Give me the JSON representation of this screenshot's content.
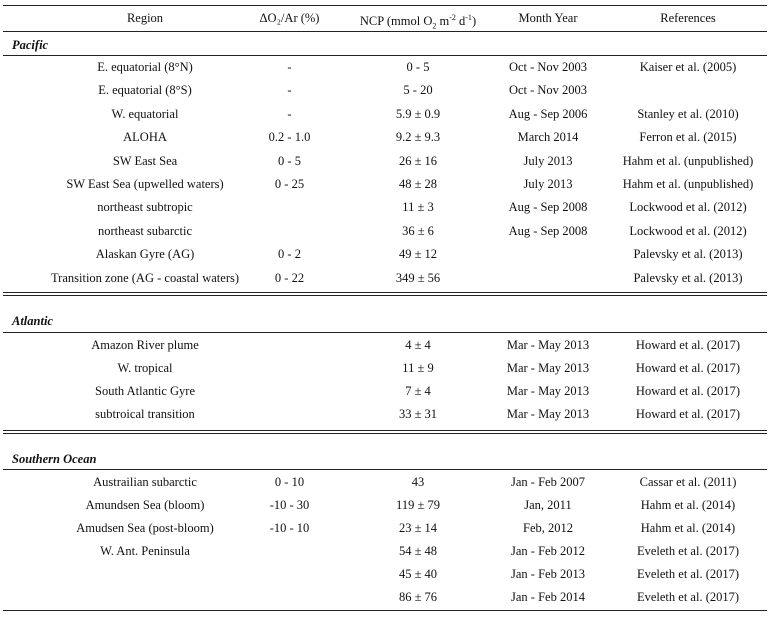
{
  "headers": {
    "region": "Region",
    "do2ar": "ΔO₂/Ar (%)",
    "ncp_prefix": "NCP (mmol O",
    "ncp_suffix": ")",
    "month_year": "Month Year",
    "references": "References"
  },
  "sections": [
    {
      "name": "Pacific",
      "rows": [
        {
          "region": "E. equatorial (8°N)",
          "do2ar": "-",
          "ncp": "0 - 5",
          "date": "Oct - Nov 2003",
          "ref": "Kaiser et al. (2005)"
        },
        {
          "region": "E. equatorial (8°S)",
          "do2ar": "-",
          "ncp": "5 - 20",
          "date": "Oct - Nov 2003",
          "ref": ""
        },
        {
          "region": "W. equatorial",
          "do2ar": "-",
          "ncp": "5.9 ± 0.9",
          "date": "Aug - Sep 2006",
          "ref": "Stanley et al. (2010)"
        },
        {
          "region": "ALOHA",
          "do2ar": "0.2 - 1.0",
          "ncp": "9.2 ± 9.3",
          "date": "March 2014",
          "ref": "Ferron et al. (2015)"
        },
        {
          "region": "SW East Sea",
          "do2ar": "0 - 5",
          "ncp": "26 ± 16",
          "date": "July 2013",
          "ref": "Hahm et al. (unpublished)"
        },
        {
          "region": "SW East Sea (upwelled waters)",
          "do2ar": "0 - 25",
          "ncp": "48 ± 28",
          "date": "July 2013",
          "ref": "Hahm et al. (unpublished)"
        },
        {
          "region": "northeast subtropic",
          "do2ar": "",
          "ncp": "11 ± 3",
          "date": "Aug - Sep 2008",
          "ref": "Lockwood et al. (2012)"
        },
        {
          "region": "northeast subarctic",
          "do2ar": "",
          "ncp": "36 ± 6",
          "date": "Aug - Sep 2008",
          "ref": "Lockwood et al. (2012)"
        },
        {
          "region": "Alaskan Gyre (AG)",
          "do2ar": "0 - 2",
          "ncp": "49 ± 12",
          "date": "",
          "ref": "Palevsky et al. (2013)"
        },
        {
          "region": "Transition zone (AG - coastal waters)",
          "do2ar": "0 - 22",
          "ncp": "349 ± 56",
          "date": "",
          "ref": "Palevsky et al. (2013)"
        }
      ]
    },
    {
      "name": "Atlantic",
      "rows": [
        {
          "region": "Amazon River plume",
          "do2ar": "",
          "ncp": "4 ± 4",
          "date": "Mar - May 2013",
          "ref": "Howard et al. (2017)"
        },
        {
          "region": "W. tropical",
          "do2ar": "",
          "ncp": "11 ± 9",
          "date": "Mar - May 2013",
          "ref": "Howard et al. (2017)"
        },
        {
          "region": "South Atlantic Gyre",
          "do2ar": "",
          "ncp": "7 ± 4",
          "date": "Mar - May 2013",
          "ref": "Howard et al. (2017)"
        },
        {
          "region": "subtroical transition",
          "do2ar": "",
          "ncp": "33 ± 31",
          "date": "Mar - May 2013",
          "ref": "Howard et al. (2017)"
        }
      ]
    },
    {
      "name": "Southern Ocean",
      "rows": [
        {
          "region": "Austrailian subarctic",
          "do2ar": "0 - 10",
          "ncp": "43",
          "date": "Jan - Feb 2007",
          "ref": "Cassar et al. (2011)"
        },
        {
          "region": "Amundsen Sea (bloom)",
          "do2ar": "-10 - 30",
          "ncp": "119 ± 79",
          "date": "Jan, 2011",
          "ref": "Hahm et al. (2014)"
        },
        {
          "region": "Amudsen Sea (post-bloom)",
          "do2ar": "-10 - 10",
          "ncp": "23 ± 14",
          "date": "Feb, 2012",
          "ref": "Hahm et al. (2014)"
        },
        {
          "region": "W. Ant. Peninsula",
          "do2ar": "",
          "ncp": "54 ± 48",
          "date": "Jan - Feb 2012",
          "ref": "Eveleth et al. (2017)"
        },
        {
          "region": "",
          "do2ar": "",
          "ncp": "45 ± 40",
          "date": "Jan - Feb 2013",
          "ref": "Eveleth et al. (2017)"
        },
        {
          "region": "",
          "do2ar": "",
          "ncp": "86 ± 76",
          "date": "Jan - Feb 2014",
          "ref": "Eveleth et al. (2017)"
        }
      ]
    }
  ]
}
